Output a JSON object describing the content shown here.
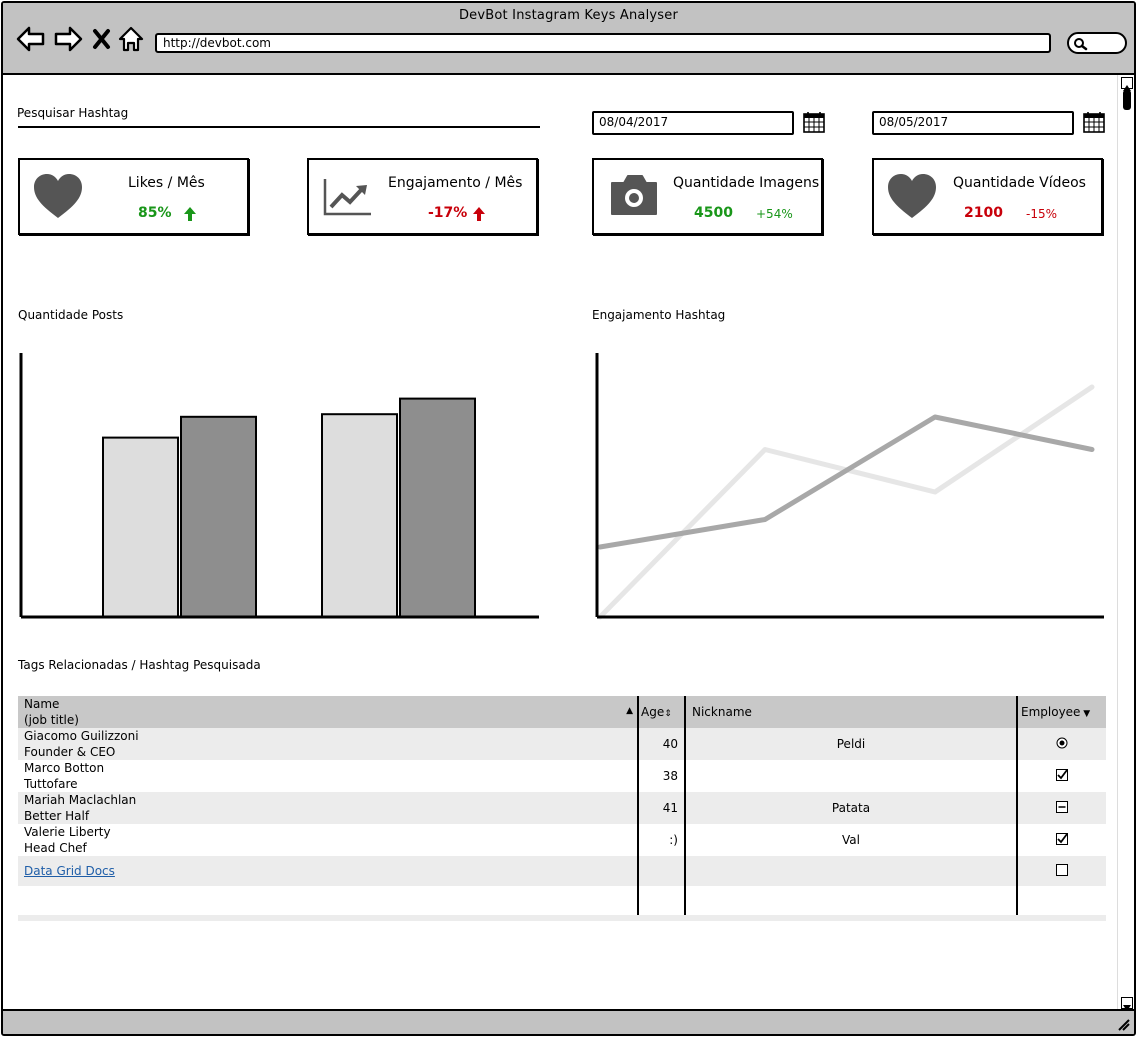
{
  "window": {
    "title": "DevBot Instagram Keys Analyser",
    "url": "http://devbot.com"
  },
  "search": {
    "label": "Pesquisar Hashtag"
  },
  "dates": {
    "start": "08/04/2017",
    "end": "08/05/2017"
  },
  "cards": [
    {
      "title": "Likes / Mês",
      "value": "85%",
      "icon": "heart-icon",
      "trend": "up",
      "color": "#199619"
    },
    {
      "title": "Engajamento / Mês",
      "value": "-17%",
      "icon": "line-chart-icon",
      "trend": "up",
      "color": "#c8000a"
    },
    {
      "title": "Quantidade Imagens",
      "value": "4500",
      "sub": "+54%",
      "icon": "camera-icon",
      "color": "#199619"
    },
    {
      "title": "Quantidade Vídeos",
      "value": "2100",
      "sub": "-15%",
      "icon": "heart-icon",
      "color": "#c8000a"
    }
  ],
  "posts_chart_title": "Quantidade Posts",
  "engagement_chart_title": "Engajamento Hashtag",
  "chart_data": [
    {
      "type": "bar",
      "categories": [
        "",
        ""
      ],
      "series": [
        {
          "values": [
            69,
            78
          ],
          "color": "#dddddd"
        },
        {
          "values": [
            77,
            84
          ],
          "color": "#8e8e8e"
        }
      ],
      "ylim": [
        0,
        100
      ],
      "grid": false
    },
    {
      "type": "line",
      "x": [
        0,
        1,
        2,
        3
      ],
      "series": [
        {
          "values": [
            0,
            67,
            50,
            92
          ],
          "color": "#e6e6e6"
        },
        {
          "values": [
            28,
            39,
            80,
            67
          ],
          "color": "#a8a8a8"
        }
      ],
      "ylim": [
        0,
        100
      ],
      "grid": false
    }
  ],
  "table": {
    "title": "Tags Relacionadas / Hashtag Pesquisada",
    "headers": {
      "name": "Name",
      "name_sub": "(job title)",
      "age": "Age",
      "nickname": "Nickname",
      "employee": "Employee"
    },
    "rows": [
      {
        "name": "Giacomo Guilizzoni",
        "title": "Founder & CEO",
        "age": "40",
        "nickname": "Peldi",
        "employee": "radio"
      },
      {
        "name": "Marco Botton",
        "title": "Tuttofare",
        "age": "38",
        "nickname": "",
        "employee": "checked"
      },
      {
        "name": "Mariah Maclachlan",
        "title": "Better Half",
        "age": "41",
        "nickname": "Patata",
        "employee": "indeterminate"
      },
      {
        "name": "Valerie Liberty",
        "title": "Head Chef",
        "age": ":)",
        "nickname": "Val",
        "employee": "checked"
      }
    ],
    "link_text": "Data Grid Docs"
  }
}
